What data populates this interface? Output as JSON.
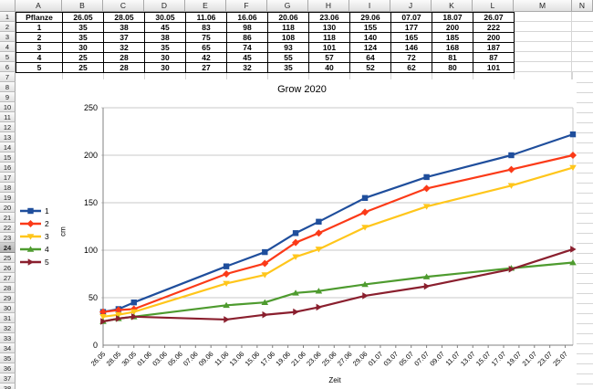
{
  "sheet": {
    "column_headers": [
      "A",
      "B",
      "C",
      "D",
      "E",
      "F",
      "G",
      "H",
      "I",
      "J",
      "K",
      "L",
      "M",
      "N"
    ],
    "row_count": 38,
    "selected_row": 24,
    "table": {
      "columns": [
        "Pflanze",
        "26.05",
        "28.05",
        "30.05",
        "11.06",
        "16.06",
        "20.06",
        "23.06",
        "29.06",
        "07.07",
        "18.07",
        "26.07"
      ],
      "rows": [
        [
          "1",
          "35",
          "38",
          "45",
          "83",
          "98",
          "118",
          "130",
          "155",
          "177",
          "200",
          "222"
        ],
        [
          "2",
          "35",
          "37",
          "38",
          "75",
          "86",
          "108",
          "118",
          "140",
          "165",
          "185",
          "200"
        ],
        [
          "3",
          "30",
          "32",
          "35",
          "65",
          "74",
          "93",
          "101",
          "124",
          "146",
          "168",
          "187"
        ],
        [
          "4",
          "25",
          "28",
          "30",
          "42",
          "45",
          "55",
          "57",
          "64",
          "72",
          "81",
          "87"
        ],
        [
          "5",
          "25",
          "28",
          "30",
          "27",
          "32",
          "35",
          "40",
          "52",
          "62",
          "80",
          "101"
        ]
      ]
    }
  },
  "chart_data": {
    "type": "line",
    "title": "Grow 2020",
    "xlabel": "Zeit",
    "ylabel": "cm",
    "ylim": [
      0,
      250
    ],
    "y_ticks": [
      0,
      50,
      100,
      150,
      200,
      250
    ],
    "grid": "horizontal",
    "legend_position": "left",
    "x_dates": [
      "26.05",
      "28.05",
      "30.05",
      "11.06",
      "16.06",
      "20.06",
      "23.06",
      "29.06",
      "07.07",
      "18.07",
      "26.07"
    ],
    "x_days": [
      0,
      2,
      4,
      16,
      21,
      25,
      28,
      34,
      42,
      53,
      61
    ],
    "x_axis_tick_labels": [
      "26.05",
      "28.05",
      "30.05",
      "01.06",
      "03.06",
      "05.06",
      "07.06",
      "09.06",
      "11.06",
      "13.06",
      "15.06",
      "17.06",
      "19.06",
      "21.06",
      "23.06",
      "25.06",
      "27.06",
      "29.06",
      "01.07",
      "03.07",
      "05.07",
      "07.07",
      "09.07",
      "11.07",
      "13.07",
      "15.07",
      "17.07",
      "19.07",
      "21.07",
      "23.07",
      "25.07"
    ],
    "colors": {
      "gridline": "#c9c9c9",
      "axis": "#808080",
      "series1": "#1F4E9C",
      "series2": "#FB3A18",
      "series3": "#FFC61B",
      "series4": "#4E9B2F",
      "series5": "#8A1F2E"
    },
    "series": [
      {
        "name": "1",
        "color": "#1F4E9C",
        "marker": "square",
        "values": [
          35,
          38,
          45,
          83,
          98,
          118,
          130,
          155,
          177,
          200,
          222
        ]
      },
      {
        "name": "2",
        "color": "#FB3A18",
        "marker": "diamond",
        "values": [
          35,
          37,
          38,
          75,
          86,
          108,
          118,
          140,
          165,
          185,
          200
        ]
      },
      {
        "name": "3",
        "color": "#FFC61B",
        "marker": "triangle-down",
        "values": [
          30,
          32,
          35,
          65,
          74,
          93,
          101,
          124,
          146,
          168,
          187
        ]
      },
      {
        "name": "4",
        "color": "#4E9B2F",
        "marker": "triangle-up",
        "values": [
          25,
          28,
          30,
          42,
          45,
          55,
          57,
          64,
          72,
          81,
          87
        ]
      },
      {
        "name": "5",
        "color": "#8A1F2E",
        "marker": "triangle-right",
        "values": [
          25,
          28,
          30,
          27,
          32,
          35,
          40,
          52,
          62,
          80,
          101
        ]
      }
    ]
  }
}
